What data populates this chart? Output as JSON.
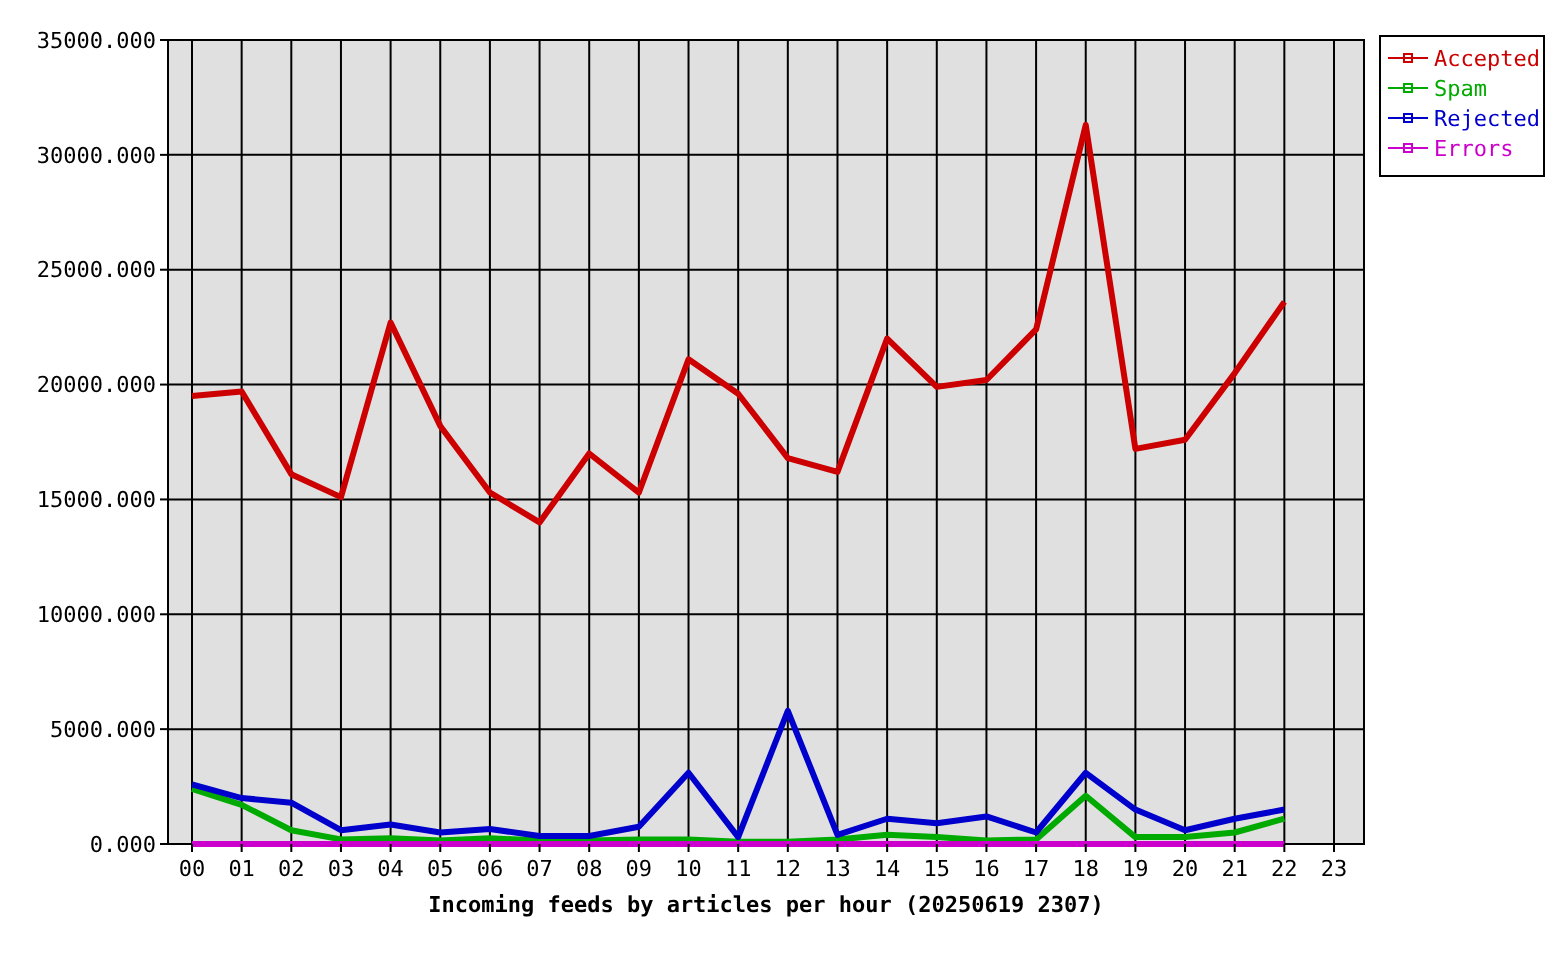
{
  "chart_data": {
    "type": "line",
    "xlabel": "Incoming feeds by articles per hour (20250619 2307)",
    "categories": [
      "00",
      "01",
      "02",
      "03",
      "04",
      "05",
      "06",
      "07",
      "08",
      "09",
      "10",
      "11",
      "12",
      "13",
      "14",
      "15",
      "16",
      "17",
      "18",
      "19",
      "20",
      "21",
      "22",
      "23"
    ],
    "series": [
      {
        "name": "Accepted",
        "color": "#cc0000",
        "values": [
          19500,
          19700,
          16100,
          15100,
          22700,
          18200,
          15300,
          14000,
          17000,
          15300,
          21100,
          19600,
          16800,
          16200,
          22000,
          19900,
          20200,
          22400,
          31300,
          17200,
          17600,
          20500,
          23600,
          null
        ]
      },
      {
        "name": "Spam",
        "color": "#00aa00",
        "values": [
          2400,
          1700,
          600,
          200,
          250,
          150,
          250,
          150,
          150,
          200,
          200,
          100,
          100,
          200,
          400,
          300,
          150,
          200,
          2100,
          300,
          300,
          500,
          1100,
          null
        ]
      },
      {
        "name": "Rejected",
        "color": "#0000cc",
        "values": [
          2600,
          2000,
          1800,
          600,
          850,
          500,
          650,
          350,
          350,
          750,
          3100,
          300,
          5800,
          400,
          1100,
          900,
          1200,
          500,
          3100,
          1500,
          600,
          1100,
          1500,
          null
        ]
      },
      {
        "name": "Errors",
        "color": "#cc00cc",
        "values": [
          0,
          0,
          0,
          0,
          0,
          0,
          0,
          0,
          0,
          0,
          0,
          0,
          0,
          0,
          0,
          0,
          0,
          0,
          0,
          0,
          0,
          0,
          0,
          null
        ]
      }
    ],
    "ylim": [
      0,
      35000
    ],
    "yticks": [
      {
        "value": 0,
        "label": "0.000"
      },
      {
        "value": 5000,
        "label": "5000.000"
      },
      {
        "value": 10000,
        "label": "10000.000"
      },
      {
        "value": 15000,
        "label": "15000.000"
      },
      {
        "value": 20000,
        "label": "20000.000"
      },
      {
        "value": 25000,
        "label": "25000.000"
      },
      {
        "value": 30000,
        "label": "30000.000"
      },
      {
        "value": 35000,
        "label": "35000.000"
      }
    ],
    "grid": true,
    "legend": "top right"
  }
}
